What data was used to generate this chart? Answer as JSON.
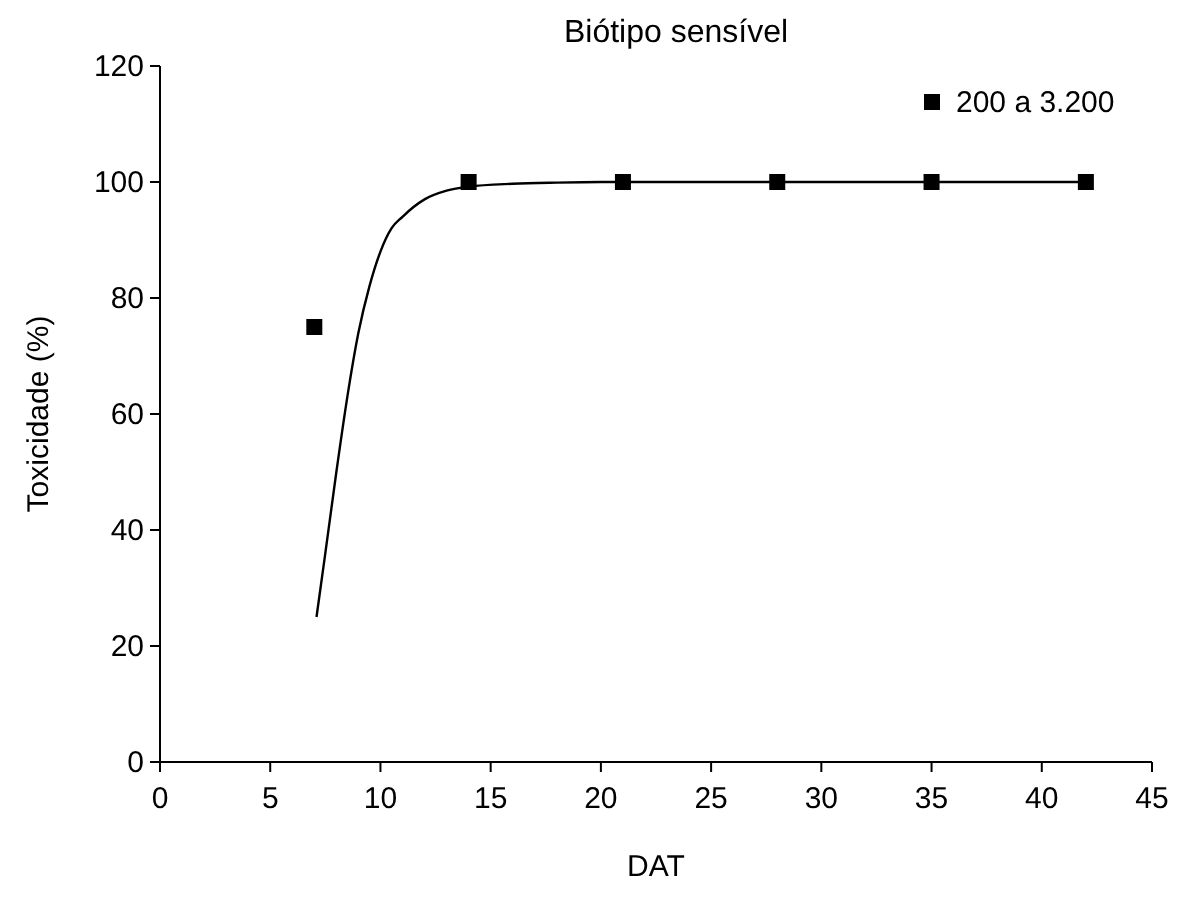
{
  "chart_data": {
    "type": "scatter",
    "title": "Biótipo sensível",
    "xlabel": "DAT",
    "ylabel": "Toxicidade (%)",
    "xlim": [
      0,
      45
    ],
    "xticks": [
      0,
      5,
      10,
      15,
      20,
      25,
      30,
      35,
      40,
      45
    ],
    "ylim": [
      0,
      120
    ],
    "yticks": [
      0,
      20,
      40,
      60,
      80,
      100,
      120
    ],
    "grid": false,
    "legend": "top right",
    "series": [
      {
        "name": "200 a 3.200",
        "marker": "square",
        "color": "#000000",
        "x": [
          7,
          14,
          21,
          28,
          35,
          42
        ],
        "values": [
          75,
          100,
          100,
          100,
          100,
          100
        ]
      },
      {
        "type": "line",
        "marker": "none",
        "line_style": "solid",
        "color": "#000000",
        "x": [
          7.1,
          7.5,
          8,
          8.5,
          9,
          9.5,
          10,
          10.5,
          11,
          12,
          13,
          14,
          16,
          18,
          20,
          25,
          42
        ],
        "values": [
          25,
          36,
          50,
          63,
          74,
          82,
          88,
          92,
          94,
          97,
          98.5,
          99.2,
          99.7,
          99.9,
          100,
          100,
          100
        ]
      }
    ]
  }
}
